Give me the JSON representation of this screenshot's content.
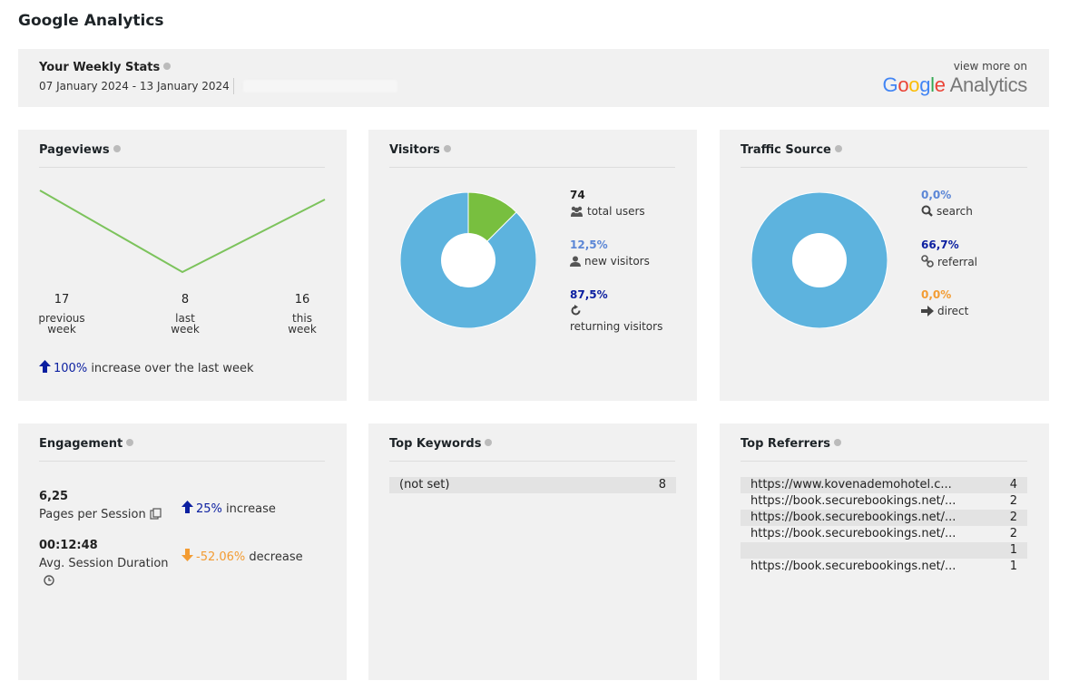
{
  "page_title": "Google Analytics",
  "header": {
    "title": "Your Weekly Stats",
    "range": "07 January 2024 - 13 January 2024",
    "view_more": "view more on",
    "logo_google": "Google",
    "logo_analytics": "Analytics"
  },
  "pageviews": {
    "title": "Pageviews",
    "chart_data": {
      "type": "line",
      "categories": [
        "previous week",
        "last week",
        "this week"
      ],
      "values": [
        17,
        8,
        16
      ],
      "color": "#7cc35c"
    },
    "labels": [
      {
        "value": "17",
        "line1": "previous",
        "line2": "week"
      },
      {
        "value": "8",
        "line1": "last",
        "line2": "week"
      },
      {
        "value": "16",
        "line1": "this",
        "line2": "week"
      }
    ],
    "trend_value": "100%",
    "trend_text": "increase over the last week"
  },
  "visitors": {
    "title": "Visitors",
    "chart_data": {
      "type": "pie",
      "slices": [
        {
          "label": "new visitors",
          "value": 12.5,
          "color": "#78bf3f"
        },
        {
          "label": "returning visitors",
          "value": 87.5,
          "color": "#5db3de"
        }
      ]
    },
    "total_value": "74",
    "total_label": "total users",
    "new_value": "12,5%",
    "new_label": "new visitors",
    "returning_value": "87,5%",
    "returning_label": "returning visitors"
  },
  "traffic": {
    "title": "Traffic Source",
    "chart_data": {
      "type": "pie",
      "slices": [
        {
          "label": "search",
          "value": 0.0,
          "color": "#5b86d6"
        },
        {
          "label": "referral",
          "value": 66.7,
          "color": "#5db3de"
        },
        {
          "label": "direct",
          "value": 0.0,
          "color": "#f39c33"
        }
      ]
    },
    "search_value": "0,0%",
    "search_label": "search",
    "referral_value": "66,7%",
    "referral_label": "referral",
    "direct_value": "0,0%",
    "direct_label": "direct"
  },
  "engagement": {
    "title": "Engagement",
    "pages_value": "6,25",
    "pages_label": "Pages per Session",
    "pages_trend_value": "25%",
    "pages_trend_text": "increase",
    "duration_value": "00:12:48",
    "duration_label": "Avg. Session Duration",
    "duration_trend_value": "-52.06%",
    "duration_trend_text": "decrease"
  },
  "keywords": {
    "title": "Top Keywords",
    "rows": [
      {
        "keyword": "(not set)",
        "count": "8"
      }
    ]
  },
  "referrers": {
    "title": "Top Referrers",
    "rows": [
      {
        "url": "https://www.kovenademohotel.c...",
        "count": "4"
      },
      {
        "url": "https://book.securebookings.net/...",
        "count": "2"
      },
      {
        "url": "https://book.securebookings.net/...",
        "count": "2"
      },
      {
        "url": "https://book.securebookings.net/...",
        "count": "2"
      },
      {
        "url": "",
        "count": "1"
      },
      {
        "url": "https://book.securebookings.net/...",
        "count": "1"
      }
    ]
  },
  "colors": {
    "panel": "#f1f1f1",
    "up": "#0b1fa0",
    "down": "#f39c33",
    "line": "#7cc35c",
    "blue": "#5db3de",
    "green": "#78bf3f",
    "search_blue": "#5b86d6"
  }
}
